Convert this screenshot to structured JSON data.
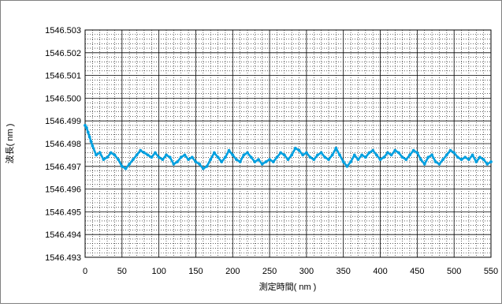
{
  "chart_data": {
    "type": "line",
    "title": "",
    "xlabel": "測定時間( nm )",
    "ylabel": "波長( nm )",
    "xlim": [
      0,
      550
    ],
    "ylim": [
      1546.493,
      1546.503
    ],
    "x_ticks": [
      0,
      50,
      100,
      150,
      200,
      250,
      300,
      350,
      400,
      450,
      500,
      550
    ],
    "y_ticks": [
      1546.503,
      1546.502,
      1546.501,
      1546.5,
      1546.499,
      1546.498,
      1546.497,
      1546.496,
      1546.495,
      1546.494,
      1546.493
    ],
    "y_tick_labels": [
      "1546.503",
      "1546.502",
      "1546.501",
      "1546.500",
      "1546.499",
      "1546.498",
      "1546.497",
      "1546.496",
      "1546.495",
      "1546.494",
      "1546.493"
    ],
    "grid": true,
    "legend": "none",
    "series": [
      {
        "color": "#00a0e0",
        "x": [
          0,
          2,
          4,
          6,
          8,
          10,
          15,
          20,
          25,
          30,
          35,
          40,
          45,
          50,
          55,
          60,
          65,
          70,
          75,
          80,
          85,
          90,
          95,
          100,
          105,
          110,
          115,
          120,
          125,
          130,
          135,
          140,
          145,
          150,
          155,
          160,
          165,
          170,
          175,
          180,
          185,
          190,
          195,
          200,
          205,
          210,
          215,
          220,
          225,
          230,
          235,
          240,
          245,
          250,
          255,
          260,
          265,
          270,
          275,
          280,
          285,
          290,
          295,
          300,
          305,
          310,
          315,
          320,
          325,
          330,
          335,
          340,
          345,
          350,
          355,
          360,
          365,
          370,
          375,
          380,
          385,
          390,
          395,
          400,
          405,
          410,
          415,
          420,
          425,
          430,
          435,
          440,
          445,
          450,
          455,
          460,
          465,
          470,
          475,
          480,
          485,
          490,
          495,
          500,
          505,
          510,
          515,
          520,
          525,
          530,
          535,
          540,
          545,
          550
        ],
        "y": [
          1546.4988,
          1546.4987,
          1546.4985,
          1546.4983,
          1546.4981,
          1546.4979,
          1546.4975,
          1546.4976,
          1546.4973,
          1546.4974,
          1546.4976,
          1546.4975,
          1546.4973,
          1546.497,
          1546.4969,
          1546.4971,
          1546.4973,
          1546.4975,
          1546.4977,
          1546.4976,
          1546.4975,
          1546.4974,
          1546.4976,
          1546.4974,
          1546.4973,
          1546.4975,
          1546.4974,
          1546.4971,
          1546.4972,
          1546.4974,
          1546.4975,
          1546.4973,
          1546.4974,
          1546.4972,
          1546.4971,
          1546.4969,
          1546.497,
          1546.4973,
          1546.4976,
          1546.4974,
          1546.4972,
          1546.4974,
          1546.4977,
          1546.4975,
          1546.4973,
          1546.4972,
          1546.4975,
          1546.4976,
          1546.4974,
          1546.4972,
          1546.4973,
          1546.4971,
          1546.4972,
          1546.4973,
          1546.4972,
          1546.4974,
          1546.4976,
          1546.4975,
          1546.4973,
          1546.4975,
          1546.4978,
          1546.4977,
          1546.4975,
          1546.4976,
          1546.4974,
          1546.4973,
          1546.4975,
          1546.4976,
          1546.4974,
          1546.4973,
          1546.4975,
          1546.4978,
          1546.4975,
          1546.4972,
          1546.497,
          1546.4972,
          1546.4975,
          1546.4973,
          1546.4975,
          1546.4974,
          1546.4976,
          1546.4977,
          1546.4975,
          1546.4973,
          1546.4974,
          1546.4976,
          1546.4975,
          1546.4977,
          1546.4976,
          1546.4974,
          1546.4973,
          1546.4975,
          1546.4977,
          1546.4976,
          1546.4973,
          1546.4971,
          1546.4974,
          1546.4975,
          1546.4972,
          1546.4971,
          1546.4973,
          1546.4975,
          1546.4977,
          1546.4976,
          1546.4974,
          1546.4973,
          1546.4974,
          1546.4973,
          1546.4975,
          1546.4972,
          1546.4974,
          1546.4973,
          1546.4971,
          1546.4972
        ]
      }
    ]
  }
}
